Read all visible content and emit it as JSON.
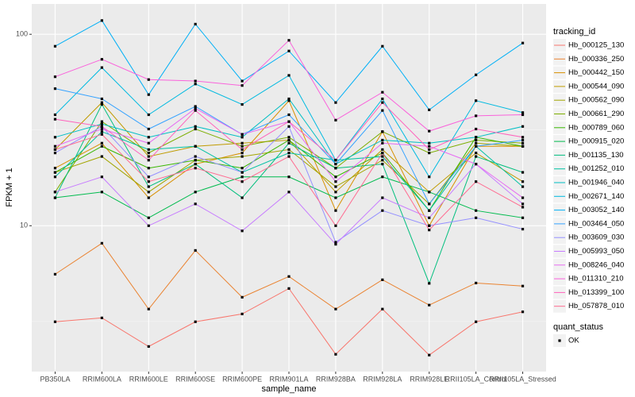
{
  "chart_data": {
    "type": "line",
    "x_label": "sample_name",
    "y_label": "FPKM + 1",
    "log_y": true,
    "grid": true,
    "legend_title": "tracking_id",
    "legend2_title": "quant_status",
    "legend2_entries": [
      "OK"
    ],
    "point_color": "#000000",
    "legend_position": "right",
    "categories": [
      "PB350LA",
      "RRIM600LA",
      "RRIM600LE",
      "RRIM600SE",
      "RRIM600PE",
      "RRIM901LA",
      "RRIM928BA",
      "RRIM928LA",
      "RRIM928LE",
      "RRII105LA_Control",
      "RRII105LA_Stressed"
    ],
    "ylim": [
      1.73,
      144
    ],
    "yticks": [
      10,
      100
    ],
    "series": [
      {
        "name": "Hb_000125_130",
        "color": "#F8766D",
        "values": [
          3.15,
          3.3,
          2.34,
          3.15,
          3.46,
          4.7,
          2.13,
          3.67,
          2.11,
          3.15,
          3.55
        ]
      },
      {
        "name": "Hb_000336_250",
        "color": "#EA8331",
        "values": [
          5.58,
          8.1,
          3.67,
          7.43,
          4.23,
          5.43,
          3.67,
          5.22,
          3.85,
          5.02,
          4.84
        ]
      },
      {
        "name": "Hb_000442_150",
        "color": "#D89000",
        "values": [
          20,
          27,
          14,
          21,
          24,
          45,
          12,
          31,
          10,
          26,
          26
        ]
      },
      {
        "name": "Hb_000544_090",
        "color": "#C09B00",
        "values": [
          25,
          44,
          23,
          26,
          27,
          28,
          15,
          25,
          15,
          24,
          17
        ]
      },
      {
        "name": "Hb_000562_090",
        "color": "#A3A500",
        "values": [
          19,
          23,
          15,
          22,
          23,
          25,
          16,
          22,
          13,
          27,
          26
        ]
      },
      {
        "name": "Hb_000661_290",
        "color": "#7CAE00",
        "values": [
          15,
          35,
          24,
          32,
          26,
          29,
          20,
          31,
          24,
          28,
          27
        ]
      },
      {
        "name": "Hb_000789_060",
        "color": "#39B600",
        "values": [
          19,
          26,
          20,
          22,
          20,
          28,
          18,
          24,
          12,
          29,
          26
        ]
      },
      {
        "name": "Hb_000915_020",
        "color": "#00BB4E",
        "values": [
          14,
          15,
          11,
          15,
          18,
          18,
          14,
          18,
          15,
          12,
          11
        ]
      },
      {
        "name": "Hb_001135_130",
        "color": "#00BF7D",
        "values": [
          14,
          43,
          16,
          21,
          14,
          27,
          20,
          21,
          5,
          23,
          19
        ]
      },
      {
        "name": "Hb_001252_010",
        "color": "#00C1A3",
        "values": [
          18,
          31,
          25,
          26,
          19,
          24,
          22,
          23,
          12,
          26,
          16
        ]
      },
      {
        "name": "Hb_001946_040",
        "color": "#00BFC4",
        "values": [
          29,
          34,
          29,
          33,
          29,
          46,
          21,
          28,
          27,
          29,
          33
        ]
      },
      {
        "name": "Hb_002671_140",
        "color": "#00BAE0",
        "values": [
          38,
          67,
          38,
          55,
          43,
          61,
          22,
          46,
          18,
          45,
          39
        ]
      },
      {
        "name": "Hb_003052_140",
        "color": "#00B0F6",
        "values": [
          86.6,
          118,
          48.4,
          113,
          57,
          81.8,
          44,
          86.6,
          40.3,
          61.4,
          90
        ]
      },
      {
        "name": "Hb_003464_050",
        "color": "#35A2FF",
        "values": [
          52,
          46,
          32,
          42,
          30,
          38,
          21,
          40,
          13,
          26,
          28
        ]
      },
      {
        "name": "Hb_003609_030",
        "color": "#9590FF",
        "values": [
          24,
          33,
          18,
          23,
          19,
          33,
          8.2,
          12,
          10,
          11,
          9.6
        ]
      },
      {
        "name": "Hb_005993_050",
        "color": "#C77CFF",
        "values": [
          15,
          18,
          10,
          13,
          9.4,
          15,
          8,
          14,
          11,
          21,
          13
        ]
      },
      {
        "name": "Hb_008246_040",
        "color": "#E76BF3",
        "values": [
          26,
          32,
          27,
          41,
          30,
          35,
          17,
          27,
          26,
          21,
          14
        ]
      },
      {
        "name": "Hb_011310_210",
        "color": "#FA62DB",
        "values": [
          60,
          74,
          58,
          57,
          54,
          93,
          35.6,
          49.8,
          31.2,
          37.5,
          38
        ]
      },
      {
        "name": "Hb_013399_100",
        "color": "#FF62BC",
        "values": [
          36,
          33,
          22,
          40,
          25,
          35,
          22,
          44,
          25,
          32,
          29
        ]
      },
      {
        "name": "Hb_057878_010",
        "color": "#FF6C91",
        "values": [
          25,
          30,
          17,
          20,
          17,
          23,
          10,
          24,
          9.5,
          17,
          12.5
        ]
      }
    ]
  }
}
